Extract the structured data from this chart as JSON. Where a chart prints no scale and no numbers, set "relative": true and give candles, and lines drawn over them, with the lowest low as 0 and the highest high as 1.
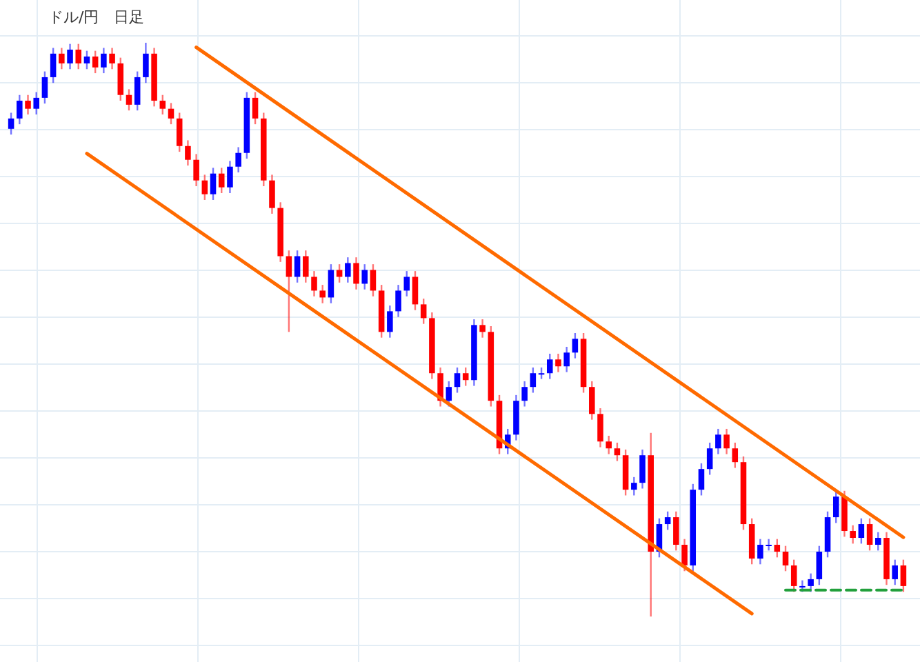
{
  "chart_data": {
    "type": "candlestick",
    "title": "ドル/円　日足",
    "relative": true,
    "grid": true,
    "categories": [
      null,
      null,
      null,
      null,
      null,
      null,
      null,
      null,
      null,
      null,
      null,
      null,
      null,
      null,
      null,
      null,
      null,
      null,
      null,
      null,
      null,
      null,
      null,
      null,
      null,
      null,
      null,
      null,
      null,
      null,
      null,
      null,
      null,
      null,
      null,
      null,
      null,
      null,
      null,
      null,
      null,
      null,
      null,
      null,
      null,
      null,
      null,
      null,
      null,
      null,
      null,
      null,
      null,
      null,
      null,
      null,
      null,
      null,
      null,
      null,
      null,
      null,
      null,
      null,
      null,
      null,
      null,
      null,
      null,
      null,
      null,
      null,
      null,
      null,
      null,
      null,
      null,
      null,
      null,
      null,
      null,
      null,
      null,
      null,
      null,
      null,
      null,
      null,
      null,
      null,
      null,
      null,
      null,
      null,
      null,
      null,
      null,
      null,
      null,
      null,
      null,
      null,
      null,
      null,
      null,
      null,
      null
    ],
    "ohlc": [
      [
        0.85,
        0.878,
        0.84,
        0.868
      ],
      [
        0.868,
        0.909,
        0.858,
        0.899
      ],
      [
        0.899,
        0.909,
        0.875,
        0.885
      ],
      [
        0.885,
        0.914,
        0.875,
        0.904
      ],
      [
        0.904,
        0.95,
        0.894,
        0.94
      ],
      [
        0.94,
        0.991,
        0.93,
        0.981
      ],
      [
        0.981,
        0.991,
        0.954,
        0.964
      ],
      [
        0.964,
        0.998,
        0.954,
        0.988
      ],
      [
        0.988,
        0.998,
        0.954,
        0.964
      ],
      [
        0.964,
        0.986,
        0.954,
        0.976
      ],
      [
        0.976,
        0.986,
        0.947,
        0.957
      ],
      [
        0.957,
        0.991,
        0.947,
        0.981
      ],
      [
        0.981,
        0.991,
        0.954,
        0.964
      ],
      [
        0.964,
        0.974,
        0.899,
        0.909
      ],
      [
        0.909,
        0.919,
        0.882,
        0.892
      ],
      [
        0.892,
        0.95,
        0.882,
        0.94
      ],
      [
        0.94,
        1.0,
        0.93,
        0.981
      ],
      [
        0.981,
        0.991,
        0.889,
        0.899
      ],
      [
        0.899,
        0.909,
        0.875,
        0.885
      ],
      [
        0.885,
        0.895,
        0.858,
        0.868
      ],
      [
        0.868,
        0.878,
        0.81,
        0.82
      ],
      [
        0.82,
        0.83,
        0.786,
        0.796
      ],
      [
        0.796,
        0.806,
        0.75,
        0.76
      ],
      [
        0.76,
        0.77,
        0.726,
        0.736
      ],
      [
        0.736,
        0.782,
        0.726,
        0.772
      ],
      [
        0.772,
        0.782,
        0.738,
        0.748
      ],
      [
        0.748,
        0.794,
        0.738,
        0.784
      ],
      [
        0.784,
        0.818,
        0.774,
        0.808
      ],
      [
        0.808,
        0.914,
        0.798,
        0.904
      ],
      [
        0.904,
        0.914,
        0.858,
        0.868
      ],
      [
        0.868,
        0.878,
        0.75,
        0.76
      ],
      [
        0.76,
        0.77,
        0.702,
        0.712
      ],
      [
        0.712,
        0.722,
        0.618,
        0.628
      ],
      [
        0.628,
        0.638,
        0.496,
        0.592
      ],
      [
        0.592,
        0.638,
        0.582,
        0.628
      ],
      [
        0.628,
        0.638,
        0.582,
        0.592
      ],
      [
        0.592,
        0.602,
        0.558,
        0.568
      ],
      [
        0.568,
        0.578,
        0.546,
        0.556
      ],
      [
        0.556,
        0.614,
        0.546,
        0.604
      ],
      [
        0.604,
        0.614,
        0.582,
        0.592
      ],
      [
        0.592,
        0.626,
        0.582,
        0.616
      ],
      [
        0.616,
        0.626,
        0.57,
        0.58
      ],
      [
        0.58,
        0.614,
        0.57,
        0.604
      ],
      [
        0.604,
        0.614,
        0.558,
        0.568
      ],
      [
        0.568,
        0.578,
        0.486,
        0.496
      ],
      [
        0.496,
        0.542,
        0.486,
        0.532
      ],
      [
        0.532,
        0.578,
        0.522,
        0.568
      ],
      [
        0.568,
        0.602,
        0.558,
        0.592
      ],
      [
        0.592,
        0.602,
        0.534,
        0.544
      ],
      [
        0.544,
        0.554,
        0.51,
        0.52
      ],
      [
        0.52,
        0.53,
        0.414,
        0.424
      ],
      [
        0.424,
        0.434,
        0.366,
        0.376
      ],
      [
        0.376,
        0.41,
        0.366,
        0.4
      ],
      [
        0.4,
        0.434,
        0.39,
        0.424
      ],
      [
        0.424,
        0.434,
        0.402,
        0.412
      ],
      [
        0.412,
        0.518,
        0.402,
        0.508
      ],
      [
        0.508,
        0.518,
        0.486,
        0.496
      ],
      [
        0.496,
        0.506,
        0.366,
        0.376
      ],
      [
        0.376,
        0.386,
        0.283,
        0.293
      ],
      [
        0.293,
        0.327,
        0.283,
        0.317
      ],
      [
        0.317,
        0.386,
        0.307,
        0.376
      ],
      [
        0.376,
        0.41,
        0.366,
        0.4
      ],
      [
        0.4,
        0.434,
        0.39,
        0.424
      ],
      [
        0.424,
        0.434,
        0.414,
        0.424
      ],
      [
        0.424,
        0.458,
        0.414,
        0.448
      ],
      [
        0.448,
        0.458,
        0.426,
        0.436
      ],
      [
        0.436,
        0.47,
        0.426,
        0.46
      ],
      [
        0.46,
        0.494,
        0.45,
        0.484
      ],
      [
        0.484,
        0.494,
        0.39,
        0.4
      ],
      [
        0.4,
        0.41,
        0.343,
        0.353
      ],
      [
        0.353,
        0.363,
        0.295,
        0.305
      ],
      [
        0.305,
        0.315,
        0.283,
        0.293
      ],
      [
        0.293,
        0.303,
        0.271,
        0.281
      ],
      [
        0.281,
        0.291,
        0.211,
        0.221
      ],
      [
        0.221,
        0.243,
        0.211,
        0.233
      ],
      [
        0.233,
        0.291,
        0.223,
        0.281
      ],
      [
        0.281,
        0.32,
        0.0,
        0.113
      ],
      [
        0.113,
        0.171,
        0.103,
        0.161
      ],
      [
        0.161,
        0.183,
        0.151,
        0.173
      ],
      [
        0.173,
        0.183,
        0.115,
        0.125
      ],
      [
        0.125,
        0.135,
        0.079,
        0.089
      ],
      [
        0.089,
        0.231,
        0.079,
        0.221
      ],
      [
        0.221,
        0.267,
        0.211,
        0.257
      ],
      [
        0.257,
        0.303,
        0.247,
        0.293
      ],
      [
        0.293,
        0.327,
        0.283,
        0.317
      ],
      [
        0.317,
        0.327,
        0.283,
        0.293
      ],
      [
        0.293,
        0.303,
        0.259,
        0.269
      ],
      [
        0.269,
        0.279,
        0.151,
        0.161
      ],
      [
        0.161,
        0.171,
        0.091,
        0.101
      ],
      [
        0.101,
        0.135,
        0.091,
        0.125
      ],
      [
        0.125,
        0.135,
        0.115,
        0.125
      ],
      [
        0.125,
        0.135,
        0.103,
        0.113
      ],
      [
        0.113,
        0.123,
        0.079,
        0.089
      ],
      [
        0.089,
        0.099,
        0.043,
        0.053
      ],
      [
        0.053,
        0.063,
        0.043,
        0.053
      ],
      [
        0.053,
        0.075,
        0.043,
        0.065
      ],
      [
        0.065,
        0.123,
        0.055,
        0.113
      ],
      [
        0.113,
        0.183,
        0.103,
        0.173
      ],
      [
        0.173,
        0.219,
        0.163,
        0.209
      ],
      [
        0.209,
        0.219,
        0.139,
        0.149
      ],
      [
        0.149,
        0.159,
        0.127,
        0.137
      ],
      [
        0.137,
        0.171,
        0.127,
        0.161
      ],
      [
        0.161,
        0.171,
        0.115,
        0.125
      ],
      [
        0.125,
        0.147,
        0.115,
        0.137
      ],
      [
        0.137,
        0.147,
        0.055,
        0.065
      ],
      [
        0.065,
        0.099,
        0.055,
        0.089
      ],
      [
        0.089,
        0.099,
        0.043,
        0.053
      ]
    ],
    "colors": [
      "#0000ff",
      "#0000ff",
      "#ff0000",
      "#0000ff",
      "#0000ff",
      "#0000ff",
      "#ff0000",
      "#0000ff",
      "#ff0000",
      "#0000ff",
      "#ff0000",
      "#0000ff",
      "#ff0000",
      "#ff0000",
      "#ff0000",
      "#0000ff",
      "#0000ff",
      "#ff0000",
      "#ff0000",
      "#ff0000",
      "#ff0000",
      "#ff0000",
      "#ff0000",
      "#ff0000",
      "#0000ff",
      "#ff0000",
      "#0000ff",
      "#0000ff",
      "#0000ff",
      "#ff0000",
      "#ff0000",
      "#ff0000",
      "#ff0000",
      "#ff0000",
      "#0000ff",
      "#ff0000",
      "#ff0000",
      "#ff0000",
      "#0000ff",
      "#ff0000",
      "#0000ff",
      "#ff0000",
      "#0000ff",
      "#ff0000",
      "#ff0000",
      "#0000ff",
      "#0000ff",
      "#0000ff",
      "#ff0000",
      "#ff0000",
      "#ff0000",
      "#ff0000",
      "#0000ff",
      "#0000ff",
      "#ff0000",
      "#0000ff",
      "#ff0000",
      "#ff0000",
      "#ff0000",
      "#0000ff",
      "#0000ff",
      "#0000ff",
      "#0000ff",
      "#0000ff",
      "#0000ff",
      "#ff0000",
      "#0000ff",
      "#0000ff",
      "#ff0000",
      "#ff0000",
      "#ff0000",
      "#ff0000",
      "#ff0000",
      "#ff0000",
      "#0000ff",
      "#0000ff",
      "#ff0000",
      "#0000ff",
      "#0000ff",
      "#ff0000",
      "#ff0000",
      "#0000ff",
      "#0000ff",
      "#0000ff",
      "#0000ff",
      "#ff0000",
      "#ff0000",
      "#ff0000",
      "#ff0000",
      "#0000ff",
      "#0000ff",
      "#ff0000",
      "#ff0000",
      "#ff0000",
      "#0000ff",
      "#0000ff",
      "#0000ff",
      "#0000ff",
      "#0000ff",
      "#ff0000",
      "#ff0000",
      "#0000ff",
      "#ff0000",
      "#0000ff",
      "#ff0000",
      "#0000ff",
      "#ff0000"
    ],
    "series": [
      {
        "type": "line",
        "values": [
          null,
          null,
          null,
          null,
          null,
          null,
          null,
          null,
          null,
          null,
          null,
          null,
          null,
          null,
          null,
          null,
          null,
          null,
          null,
          null,
          null,
          null,
          0.992,
          null,
          null,
          null,
          null,
          null,
          null,
          null,
          null,
          null,
          null,
          null,
          null,
          null,
          null,
          null,
          null,
          null,
          null,
          null,
          null,
          null,
          null,
          null,
          null,
          null,
          null,
          null,
          null,
          null,
          null,
          null,
          null,
          null,
          null,
          null,
          null,
          null,
          null,
          null,
          null,
          null,
          null,
          null,
          null,
          null,
          null,
          null,
          null,
          null,
          null,
          null,
          null,
          null,
          null,
          null,
          null,
          null,
          null,
          null,
          null,
          null,
          null,
          null,
          null,
          null,
          null,
          null,
          null,
          null,
          null,
          null,
          null,
          null,
          null,
          null,
          null,
          null,
          null,
          null,
          null,
          null,
          null,
          null,
          0.138
        ],
        "color": "#ff6a00"
      },
      {
        "type": "line",
        "values": [
          null,
          null,
          null,
          null,
          null,
          null,
          null,
          null,
          null,
          0.807,
          null,
          null,
          null,
          null,
          null,
          null,
          null,
          null,
          null,
          null,
          null,
          null,
          null,
          null,
          null,
          null,
          null,
          null,
          null,
          null,
          null,
          null,
          null,
          null,
          null,
          null,
          null,
          null,
          null,
          null,
          null,
          null,
          null,
          null,
          null,
          null,
          null,
          null,
          null,
          null,
          null,
          null,
          null,
          null,
          null,
          null,
          null,
          null,
          null,
          null,
          null,
          null,
          null,
          null,
          null,
          null,
          null,
          null,
          null,
          null,
          null,
          null,
          null,
          null,
          null,
          null,
          null,
          null,
          null,
          null,
          null,
          null,
          null,
          null,
          null,
          null,
          null,
          null,
          0.005,
          null,
          null,
          null,
          null,
          null,
          null,
          null,
          null,
          null,
          null,
          null,
          null,
          null,
          null,
          null,
          null,
          null,
          null
        ],
        "color": "#ff6a00"
      },
      {
        "type": "line",
        "values": [
          null,
          null,
          null,
          null,
          null,
          null,
          null,
          null,
          null,
          null,
          null,
          null,
          null,
          null,
          null,
          null,
          null,
          null,
          null,
          null,
          null,
          null,
          null,
          null,
          null,
          null,
          null,
          null,
          null,
          null,
          null,
          null,
          null,
          null,
          null,
          null,
          null,
          null,
          null,
          null,
          null,
          null,
          null,
          null,
          null,
          null,
          null,
          null,
          null,
          null,
          null,
          null,
          null,
          null,
          null,
          null,
          null,
          null,
          null,
          null,
          null,
          null,
          null,
          null,
          null,
          null,
          null,
          null,
          null,
          null,
          null,
          null,
          null,
          null,
          null,
          null,
          null,
          null,
          null,
          null,
          null,
          null,
          null,
          null,
          null,
          null,
          null,
          null,
          null,
          null,
          null,
          null,
          0.046,
          null,
          null,
          null,
          null,
          null,
          null,
          null,
          null,
          null,
          null,
          null,
          null,
          null,
          0.046
        ],
        "color": "#22a03c",
        "line_style": "dashed"
      }
    ]
  }
}
